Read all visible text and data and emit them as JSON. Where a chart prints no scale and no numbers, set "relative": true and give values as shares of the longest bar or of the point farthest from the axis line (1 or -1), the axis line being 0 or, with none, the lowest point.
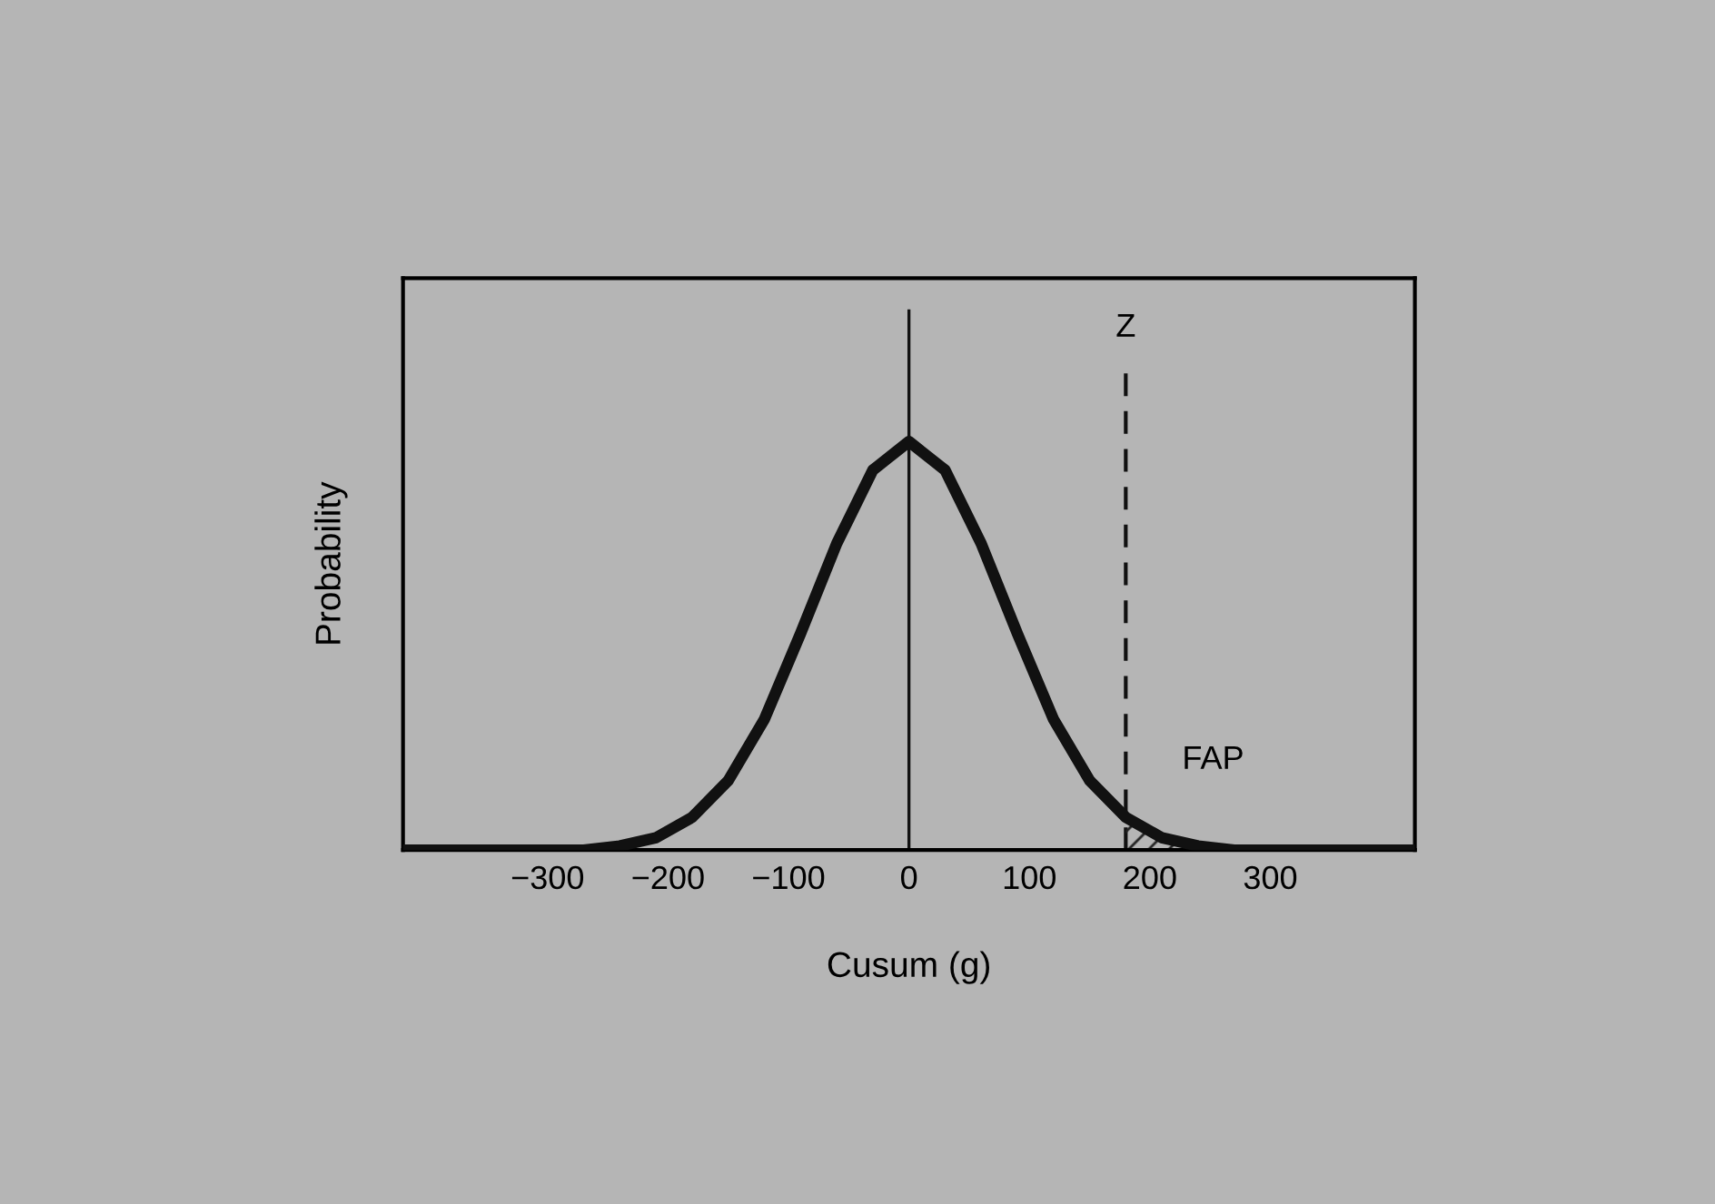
{
  "chart_data": {
    "type": "line",
    "relative": true,
    "xlabel": "Cusum (g)",
    "ylabel": "Probability",
    "xlim": [
      -420,
      420
    ],
    "xticks": [
      {
        "value": -300,
        "label": "−300"
      },
      {
        "value": -200,
        "label": "−200"
      },
      {
        "value": -100,
        "label": "−100"
      },
      0,
      100,
      200,
      300
    ],
    "series": [
      {
        "color": "#111111",
        "x": [
          -420,
          -300,
          -270,
          -240,
          -210,
          -180,
          -150,
          -120,
          -90,
          -60,
          -30,
          0,
          30,
          60,
          90,
          120,
          150,
          180,
          210,
          240,
          270,
          300,
          420
        ],
        "values": [
          0,
          0,
          0,
          0.01,
          0.03,
          0.08,
          0.17,
          0.32,
          0.53,
          0.75,
          0.93,
          1,
          0.93,
          0.75,
          0.53,
          0.32,
          0.17,
          0.08,
          0.03,
          0.01,
          0,
          0,
          0
        ]
      },
      {
        "type": "area",
        "color": "#222222",
        "x": [
          180,
          210,
          240,
          270
        ],
        "values": [
          0.08,
          0.03,
          0.01,
          0
        ]
      }
    ],
    "ref_lines": [
      {
        "axis": "x",
        "value": 0,
        "label": null,
        "line_style": "solid",
        "color": "#111111"
      },
      {
        "axis": "x",
        "value": 180,
        "label": "Z",
        "line_style": "dashed",
        "color": "#111111"
      }
    ],
    "annotations": [
      "FAP"
    ],
    "grid": false,
    "legend": false
  }
}
